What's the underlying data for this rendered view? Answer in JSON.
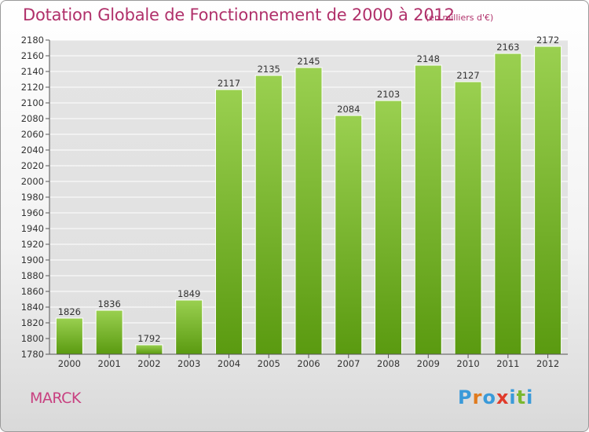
{
  "header": {
    "title": "Dotation Globale de Fonctionnement de 2000 à 2012",
    "unit": "(en milliers d'€)"
  },
  "footer": {
    "commune": "MARCK",
    "logo_text": "Proxiti",
    "logo_colors": [
      "#3a9ad9",
      "#e07b1f",
      "#3a9ad9",
      "#e03a2a",
      "#3a9ad9",
      "#7ab830",
      "#3a9ad9"
    ]
  },
  "colors": {
    "title": "#b0306a",
    "bar_top": "#9ad050",
    "bar_bottom": "#5a9a10",
    "grid": "#ffffff",
    "axis_text": "#333333"
  },
  "chart_data": {
    "type": "bar",
    "title": "Dotation Globale de Fonctionnement de 2000 à 2012",
    "subtitle": "(en milliers d'€)",
    "categories": [
      "2000",
      "2001",
      "2002",
      "2003",
      "2004",
      "2005",
      "2006",
      "2007",
      "2008",
      "2009",
      "2010",
      "2011",
      "2012"
    ],
    "values": [
      1826,
      1836,
      1792,
      1849,
      2117,
      2135,
      2145,
      2084,
      2103,
      2148,
      2127,
      2163,
      2172
    ],
    "ylim": [
      1780,
      2180
    ],
    "ytick_step": 20,
    "grid": true,
    "data_labels": true
  }
}
